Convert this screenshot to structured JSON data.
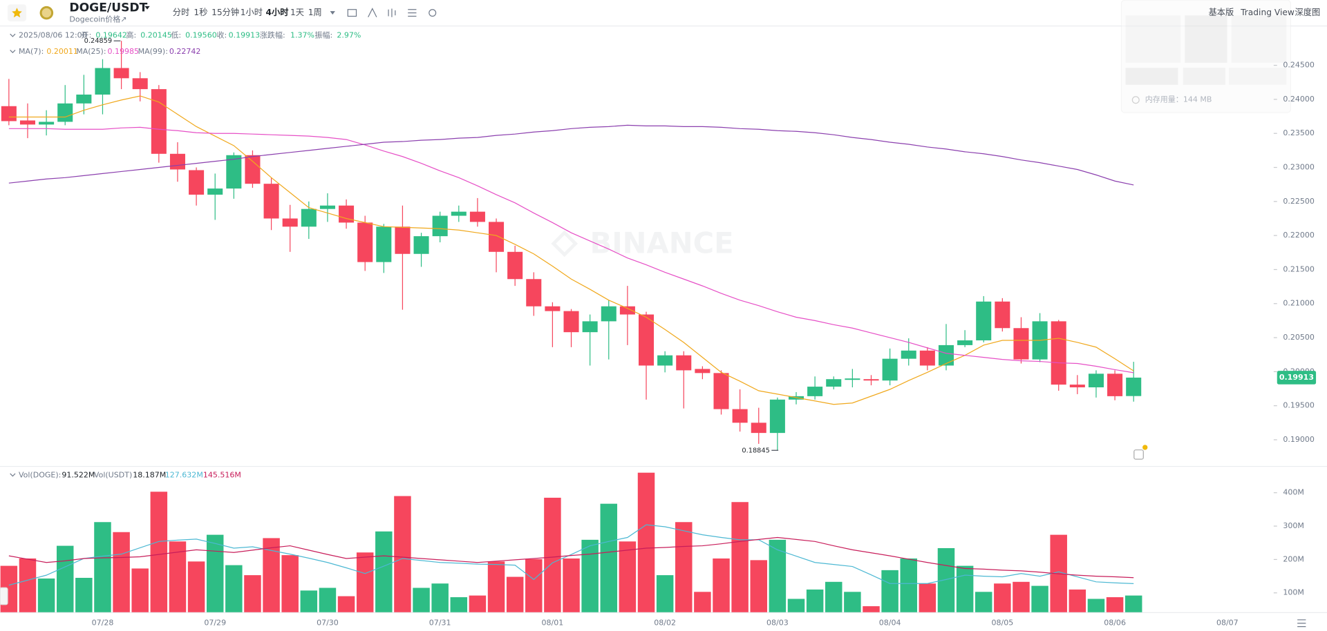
{
  "header": {
    "pair": "DOGE/USDT",
    "subtitle": "Dogecoin价格↗",
    "intervals": [
      "分时",
      "1秒",
      "15分钟",
      "1小时",
      "4小时",
      "1天",
      "1周"
    ],
    "active_interval": 4,
    "views": [
      "基本版",
      "Trading View",
      "深度图"
    ],
    "memory": "内存用量：144 MB"
  },
  "info": {
    "time": "2025/08/06 12:00",
    "open_label": "开:",
    "open": "0.19642",
    "high_label": "高:",
    "high": "0.20145",
    "low_label": "低:",
    "low": "0.19560",
    "close_label": "收:",
    "close": "0.19913",
    "change_label": "涨跌幅:",
    "change": "1.37%",
    "amplitude_label": "振幅:",
    "amplitude": "2.97%"
  },
  "chart_data": [
    {
      "type": "candlestick",
      "watermark": "BINANCE",
      "up_color": "#2ebd85",
      "down_color": "#f6465d",
      "categories": [
        null,
        null,
        null,
        null,
        null,
        "07/28",
        null,
        null,
        null,
        null,
        null,
        "07/29",
        null,
        null,
        null,
        null,
        null,
        "07/30",
        null,
        null,
        null,
        null,
        null,
        "07/31",
        null,
        null,
        null,
        null,
        null,
        "08/01",
        null,
        null,
        null,
        null,
        null,
        "08/02",
        null,
        null,
        null,
        null,
        null,
        "08/03",
        null,
        null,
        null,
        null,
        null,
        "08/04",
        null,
        null,
        null,
        null,
        null,
        "08/05",
        null,
        null,
        null,
        null,
        null,
        "08/06",
        null,
        null,
        null,
        null,
        null,
        "08/07"
      ],
      "open": [
        0.239,
        0.2369,
        0.2363,
        0.2367,
        0.2394,
        0.2407,
        0.2446,
        0.2431,
        0.2415,
        0.232,
        0.2296,
        0.226,
        0.2269,
        0.2318,
        0.2276,
        0.2225,
        0.2213,
        0.2239,
        0.2244,
        0.2219,
        0.2161,
        0.2213,
        0.2173,
        0.2199,
        0.2229,
        0.2235,
        0.222,
        0.2176,
        0.2136,
        0.2096,
        0.2089,
        0.2058,
        0.2074,
        0.2096,
        0.2084,
        0.2009,
        0.2024,
        0.2004,
        0.1998,
        0.1945,
        0.1925,
        0.191,
        0.1959,
        0.1964,
        0.1978,
        0.1988,
        0.1989,
        0.1987,
        0.2019,
        0.2031,
        0.2009,
        0.2039,
        0.2046,
        0.2103,
        0.2064,
        0.2018,
        0.2074,
        0.1981,
        0.1977,
        0.1997,
        0.19642,
        null,
        null,
        null,
        null,
        null
      ],
      "high": [
        0.243,
        0.2394,
        0.2384,
        0.2421,
        0.2436,
        0.2459,
        0.24859,
        0.244,
        0.2421,
        0.2337,
        0.23,
        0.2291,
        0.2322,
        0.2325,
        0.2285,
        0.2245,
        0.225,
        0.2262,
        0.2253,
        0.2229,
        0.2217,
        0.2244,
        0.2204,
        0.2235,
        0.2244,
        0.2255,
        0.2225,
        0.2185,
        0.2146,
        0.2102,
        0.2092,
        0.2084,
        0.2105,
        0.2126,
        0.2088,
        0.203,
        0.203,
        0.2008,
        0.2002,
        0.1974,
        0.1947,
        0.1962,
        0.197,
        0.1993,
        0.1993,
        0.2004,
        0.1995,
        0.2034,
        0.2049,
        0.2036,
        0.207,
        0.2061,
        0.2111,
        0.2108,
        0.208,
        0.2086,
        0.2076,
        0.1995,
        0.2002,
        0.2002,
        0.20145,
        null,
        null,
        null,
        null,
        null
      ],
      "low": [
        0.2362,
        0.2343,
        0.2347,
        0.2362,
        0.2378,
        0.2378,
        0.2415,
        0.2397,
        0.2307,
        0.2279,
        0.2244,
        0.2223,
        0.2254,
        0.227,
        0.2208,
        0.2176,
        0.2195,
        0.222,
        0.221,
        0.2148,
        0.2145,
        0.2091,
        0.2154,
        0.219,
        0.222,
        0.2213,
        0.2146,
        0.2126,
        0.2082,
        0.2036,
        0.2036,
        0.2009,
        0.2018,
        0.2039,
        0.1959,
        0.1999,
        0.1946,
        0.1989,
        0.1937,
        0.1912,
        0.1894,
        0.18845,
        0.1952,
        0.1959,
        0.1974,
        0.1977,
        0.198,
        0.198,
        0.2009,
        0.2002,
        0.2002,
        0.2036,
        0.2043,
        0.2059,
        0.2012,
        0.2014,
        0.1972,
        0.1967,
        0.1962,
        0.1958,
        0.1956,
        null,
        null,
        null,
        null,
        null
      ],
      "close": [
        0.2368,
        0.2363,
        0.2367,
        0.2394,
        0.2407,
        0.2446,
        0.2431,
        0.2415,
        0.232,
        0.2297,
        0.226,
        0.2269,
        0.2318,
        0.2276,
        0.2225,
        0.2213,
        0.2239,
        0.2244,
        0.2219,
        0.2161,
        0.2213,
        0.2173,
        0.2199,
        0.2229,
        0.2235,
        0.222,
        0.2176,
        0.2136,
        0.2096,
        0.2089,
        0.2058,
        0.2074,
        0.2096,
        0.2084,
        0.2009,
        0.2024,
        0.2002,
        0.1998,
        0.1945,
        0.1925,
        0.191,
        0.1959,
        0.1964,
        0.1978,
        0.1989,
        0.199,
        0.1987,
        0.2019,
        0.2031,
        0.2009,
        0.2039,
        0.2046,
        0.2103,
        0.2064,
        0.2018,
        0.2074,
        0.1981,
        0.1977,
        0.1997,
        0.1964,
        0.19913,
        null,
        null,
        null,
        null,
        null
      ],
      "ylim": [
        0.18615,
        0.25084
      ],
      "yticks": [
        {
          "value": 0.245,
          "label": "0.24500"
        },
        {
          "value": 0.24,
          "label": "0.24000"
        },
        {
          "value": 0.235,
          "label": "0.23500"
        },
        {
          "value": 0.23,
          "label": "0.23000"
        },
        {
          "value": 0.225,
          "label": "0.22500"
        },
        {
          "value": 0.22,
          "label": "0.22000"
        },
        {
          "value": 0.215,
          "label": "0.21500"
        },
        {
          "value": 0.21,
          "label": "0.21000"
        },
        {
          "value": 0.205,
          "label": "0.20500"
        },
        {
          "value": 0.2,
          "label": "0.20000"
        },
        {
          "value": 0.195,
          "label": "0.19500"
        },
        {
          "value": 0.19,
          "label": "0.19000"
        }
      ],
      "series": [
        {
          "name": "MA(7):",
          "color": "#f0a81c",
          "values": [
            0.2374,
            0.2374,
            0.2374,
            0.2374,
            0.2384,
            0.2392,
            0.2399,
            0.2405,
            0.2396,
            0.2378,
            0.236,
            0.2346,
            0.2332,
            0.2309,
            0.2285,
            0.2263,
            0.2241,
            0.2233,
            0.2225,
            0.2219,
            0.2213,
            0.2212,
            0.2211,
            0.221,
            0.2208,
            0.2204,
            0.22,
            0.2187,
            0.2173,
            0.2155,
            0.2136,
            0.2121,
            0.2105,
            0.2093,
            0.208,
            0.2062,
            0.2043,
            0.2021,
            0.1999,
            0.1986,
            0.1972,
            0.1967,
            0.1962,
            0.1957,
            0.1952,
            0.1954,
            0.1964,
            0.1974,
            0.1987,
            0.1999,
            0.2012,
            0.2024,
            0.2039,
            0.2046,
            0.2046,
            0.2046,
            0.2049,
            0.2043,
            0.2036,
            0.2019,
            0.20011,
            null,
            null,
            null,
            null,
            null
          ]
        },
        {
          "name": "MA(25):",
          "color": "#e64fc6",
          "values": [
            0.2357,
            0.2357,
            0.2357,
            0.2356,
            0.2356,
            0.2356,
            0.2358,
            0.2359,
            0.2356,
            0.2354,
            0.2351,
            0.235,
            0.235,
            0.2349,
            0.2348,
            0.2347,
            0.2346,
            0.2344,
            0.2341,
            0.2333,
            0.2324,
            0.2316,
            0.2306,
            0.2295,
            0.2285,
            0.2273,
            0.226,
            0.2248,
            0.2233,
            0.2219,
            0.2204,
            0.2192,
            0.218,
            0.2167,
            0.2157,
            0.2146,
            0.2136,
            0.2126,
            0.2115,
            0.2105,
            0.2097,
            0.2088,
            0.208,
            0.2075,
            0.2069,
            0.2064,
            0.2057,
            0.205,
            0.2043,
            0.2035,
            0.2027,
            0.2024,
            0.2021,
            0.2018,
            0.2016,
            0.2015,
            0.2013,
            0.2012,
            0.2008,
            0.2003,
            0.19985,
            null,
            null,
            null,
            null,
            null
          ]
        },
        {
          "name": "MA(99):",
          "color": "#8b3fae",
          "values": [
            0.2277,
            0.228,
            0.2283,
            0.2285,
            0.2288,
            0.2291,
            0.2294,
            0.2297,
            0.23,
            0.2303,
            0.2306,
            0.2309,
            0.2312,
            0.2316,
            0.2319,
            0.2322,
            0.2325,
            0.2328,
            0.2331,
            0.2334,
            0.2337,
            0.2338,
            0.234,
            0.2341,
            0.2343,
            0.2344,
            0.2347,
            0.2349,
            0.2352,
            0.2354,
            0.2357,
            0.2359,
            0.236,
            0.2362,
            0.2361,
            0.2361,
            0.236,
            0.236,
            0.2359,
            0.2357,
            0.2356,
            0.2354,
            0.2353,
            0.2351,
            0.2348,
            0.2344,
            0.2341,
            0.2337,
            0.2334,
            0.233,
            0.2327,
            0.2323,
            0.232,
            0.2316,
            0.2311,
            0.2307,
            0.2302,
            0.2297,
            0.2289,
            0.228,
            0.22742,
            null,
            null,
            null,
            null,
            null
          ]
        }
      ]
    },
    {
      "type": "bar",
      "legend": {
        "vol_base": "Vol(DOGE):",
        "vol_base_value": "91.522M",
        "vol_quote": "Vol(USDT)",
        "vol_quote_value": "18.187M"
      },
      "values": [
        181,
        203,
        143,
        241,
        145,
        312,
        282,
        173,
        403,
        254,
        194,
        274,
        183,
        153,
        264,
        213,
        107,
        115,
        90,
        221,
        284,
        390,
        115,
        128,
        87,
        92,
        194,
        148,
        201,
        385,
        203,
        259,
        367,
        254,
        460,
        153,
        312,
        103,
        203,
        372,
        198,
        259,
        82,
        110,
        133,
        103,
        60,
        168,
        203,
        128,
        234,
        181,
        103,
        128,
        133,
        121,
        274,
        110,
        82,
        87,
        92,
        null,
        null,
        null,
        null,
        null
      ],
      "ylim": [
        42,
        470
      ],
      "yticks": [
        {
          "value": 400,
          "label": "400M"
        },
        {
          "value": 300,
          "label": "300M"
        },
        {
          "value": 200,
          "label": "200M"
        },
        {
          "value": 100,
          "label": "100M"
        }
      ],
      "series": [
        {
          "color": "#4cb8d3",
          "label": "127.632M",
          "values": [
            123,
            138,
            153,
            178,
            203,
            210,
            216,
            235,
            254,
            258,
            261,
            248,
            234,
            238,
            227,
            216,
            204,
            191,
            175,
            158,
            180,
            203,
            197,
            191,
            189,
            186,
            185,
            183,
            140,
            190,
            215,
            241,
            254,
            266,
            304,
            298,
            286,
            274,
            266,
            259,
            259,
            229,
            210,
            191,
            185,
            179,
            154,
            128,
            128,
            128,
            140,
            153,
            150,
            148,
            158,
            150,
            163,
            148,
            133,
            130,
            127.632,
            null,
            null,
            null,
            null,
            null
          ]
        },
        {
          "color": "#c81d5a",
          "label": "145.516M",
          "values": [
            211,
            201,
            191,
            196,
            203,
            205,
            206,
            208,
            215,
            222,
            229,
            225,
            221,
            228,
            235,
            241,
            228,
            215,
            203,
            207,
            211,
            207,
            203,
            199,
            195,
            191,
            195,
            199,
            203,
            207,
            212,
            216,
            222,
            228,
            234,
            236,
            239,
            241,
            247,
            254,
            260,
            266,
            260,
            254,
            241,
            229,
            220,
            211,
            201,
            191,
            182,
            173,
            171,
            168,
            166,
            162,
            157,
            153,
            150,
            148,
            145.516,
            null,
            null,
            null,
            null,
            null
          ]
        }
      ]
    }
  ]
}
